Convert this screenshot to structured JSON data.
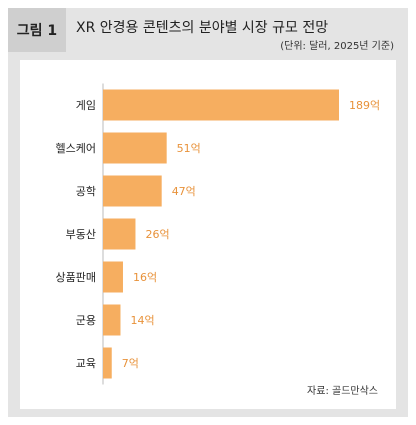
{
  "figure": {
    "tag": "그림 1",
    "title": "XR 안경용 콘텐츠의 분야별 시장 규모 전망",
    "unit_note": "(단위: 달러, 2025년 기준)",
    "source": "자료: 골드만삭스"
  },
  "colors": {
    "bar": "#f6ae60",
    "value_label": "#e8923a"
  },
  "chart_data": {
    "type": "bar",
    "orientation": "horizontal",
    "categories": [
      "게임",
      "헬스케어",
      "공학",
      "부동산",
      "상품판매",
      "군용",
      "교육"
    ],
    "values": [
      189,
      51,
      47,
      26,
      16,
      14,
      7
    ],
    "value_labels": [
      "189억",
      "51억",
      "47억",
      "26억",
      "16억",
      "14억",
      "7억"
    ],
    "title": "XR 안경용 콘텐츠의 분야별 시장 규모 전망",
    "xlim": [
      0,
      189
    ],
    "grid": false
  }
}
